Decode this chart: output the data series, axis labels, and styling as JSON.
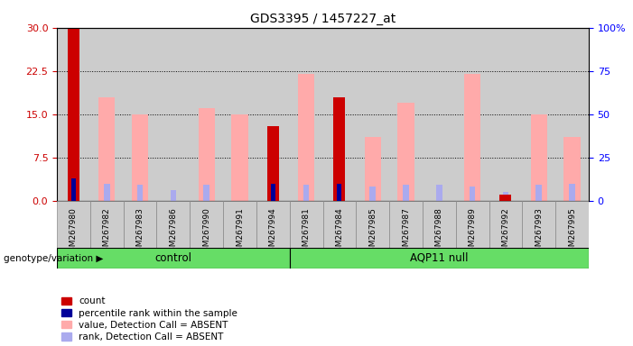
{
  "title": "GDS3395 / 1457227_at",
  "samples": [
    "GSM267980",
    "GSM267982",
    "GSM267983",
    "GSM267986",
    "GSM267990",
    "GSM267991",
    "GSM267994",
    "GSM267981",
    "GSM267984",
    "GSM267985",
    "GSM267987",
    "GSM267988",
    "GSM267989",
    "GSM267992",
    "GSM267993",
    "GSM267995"
  ],
  "n_control": 7,
  "n_aqp": 9,
  "count_values": [
    30,
    0,
    0,
    0,
    0,
    0,
    13,
    0,
    18,
    0,
    0,
    0,
    0,
    1,
    0,
    0
  ],
  "rank_values": [
    13,
    0,
    0,
    0,
    0,
    0,
    10,
    0,
    10,
    0,
    0,
    0,
    0,
    0,
    0,
    0
  ],
  "pink_values": [
    0,
    18,
    15,
    0,
    16,
    15,
    0,
    22,
    0,
    11,
    17,
    0,
    22,
    0,
    15,
    11
  ],
  "blue_rank_vals": [
    0,
    10,
    9,
    6,
    9,
    0,
    9,
    9,
    0,
    8,
    9,
    9,
    8,
    5,
    9,
    10
  ],
  "ylim_left": [
    0,
    30
  ],
  "ylim_right": [
    0,
    100
  ],
  "yticks_left": [
    0,
    7.5,
    15,
    22.5,
    30
  ],
  "yticks_right": [
    0,
    25,
    50,
    75,
    100
  ],
  "color_count": "#cc0000",
  "color_rank": "#000099",
  "color_pink": "#ffaaaa",
  "color_blue_rank": "#aaaaee",
  "color_group_bg": "#66dd66",
  "color_sample_bg": "#cccccc",
  "color_plot_bg": "#ffffff",
  "group_label_control": "control",
  "group_label_aqp": "AQP11 null",
  "xlabel_group": "genotype/variation",
  "legend_items": [
    {
      "color": "#cc0000",
      "label": "count"
    },
    {
      "color": "#000099",
      "label": "percentile rank within the sample"
    },
    {
      "color": "#ffaaaa",
      "label": "value, Detection Call = ABSENT"
    },
    {
      "color": "#aaaaee",
      "label": "rank, Detection Call = ABSENT"
    }
  ]
}
